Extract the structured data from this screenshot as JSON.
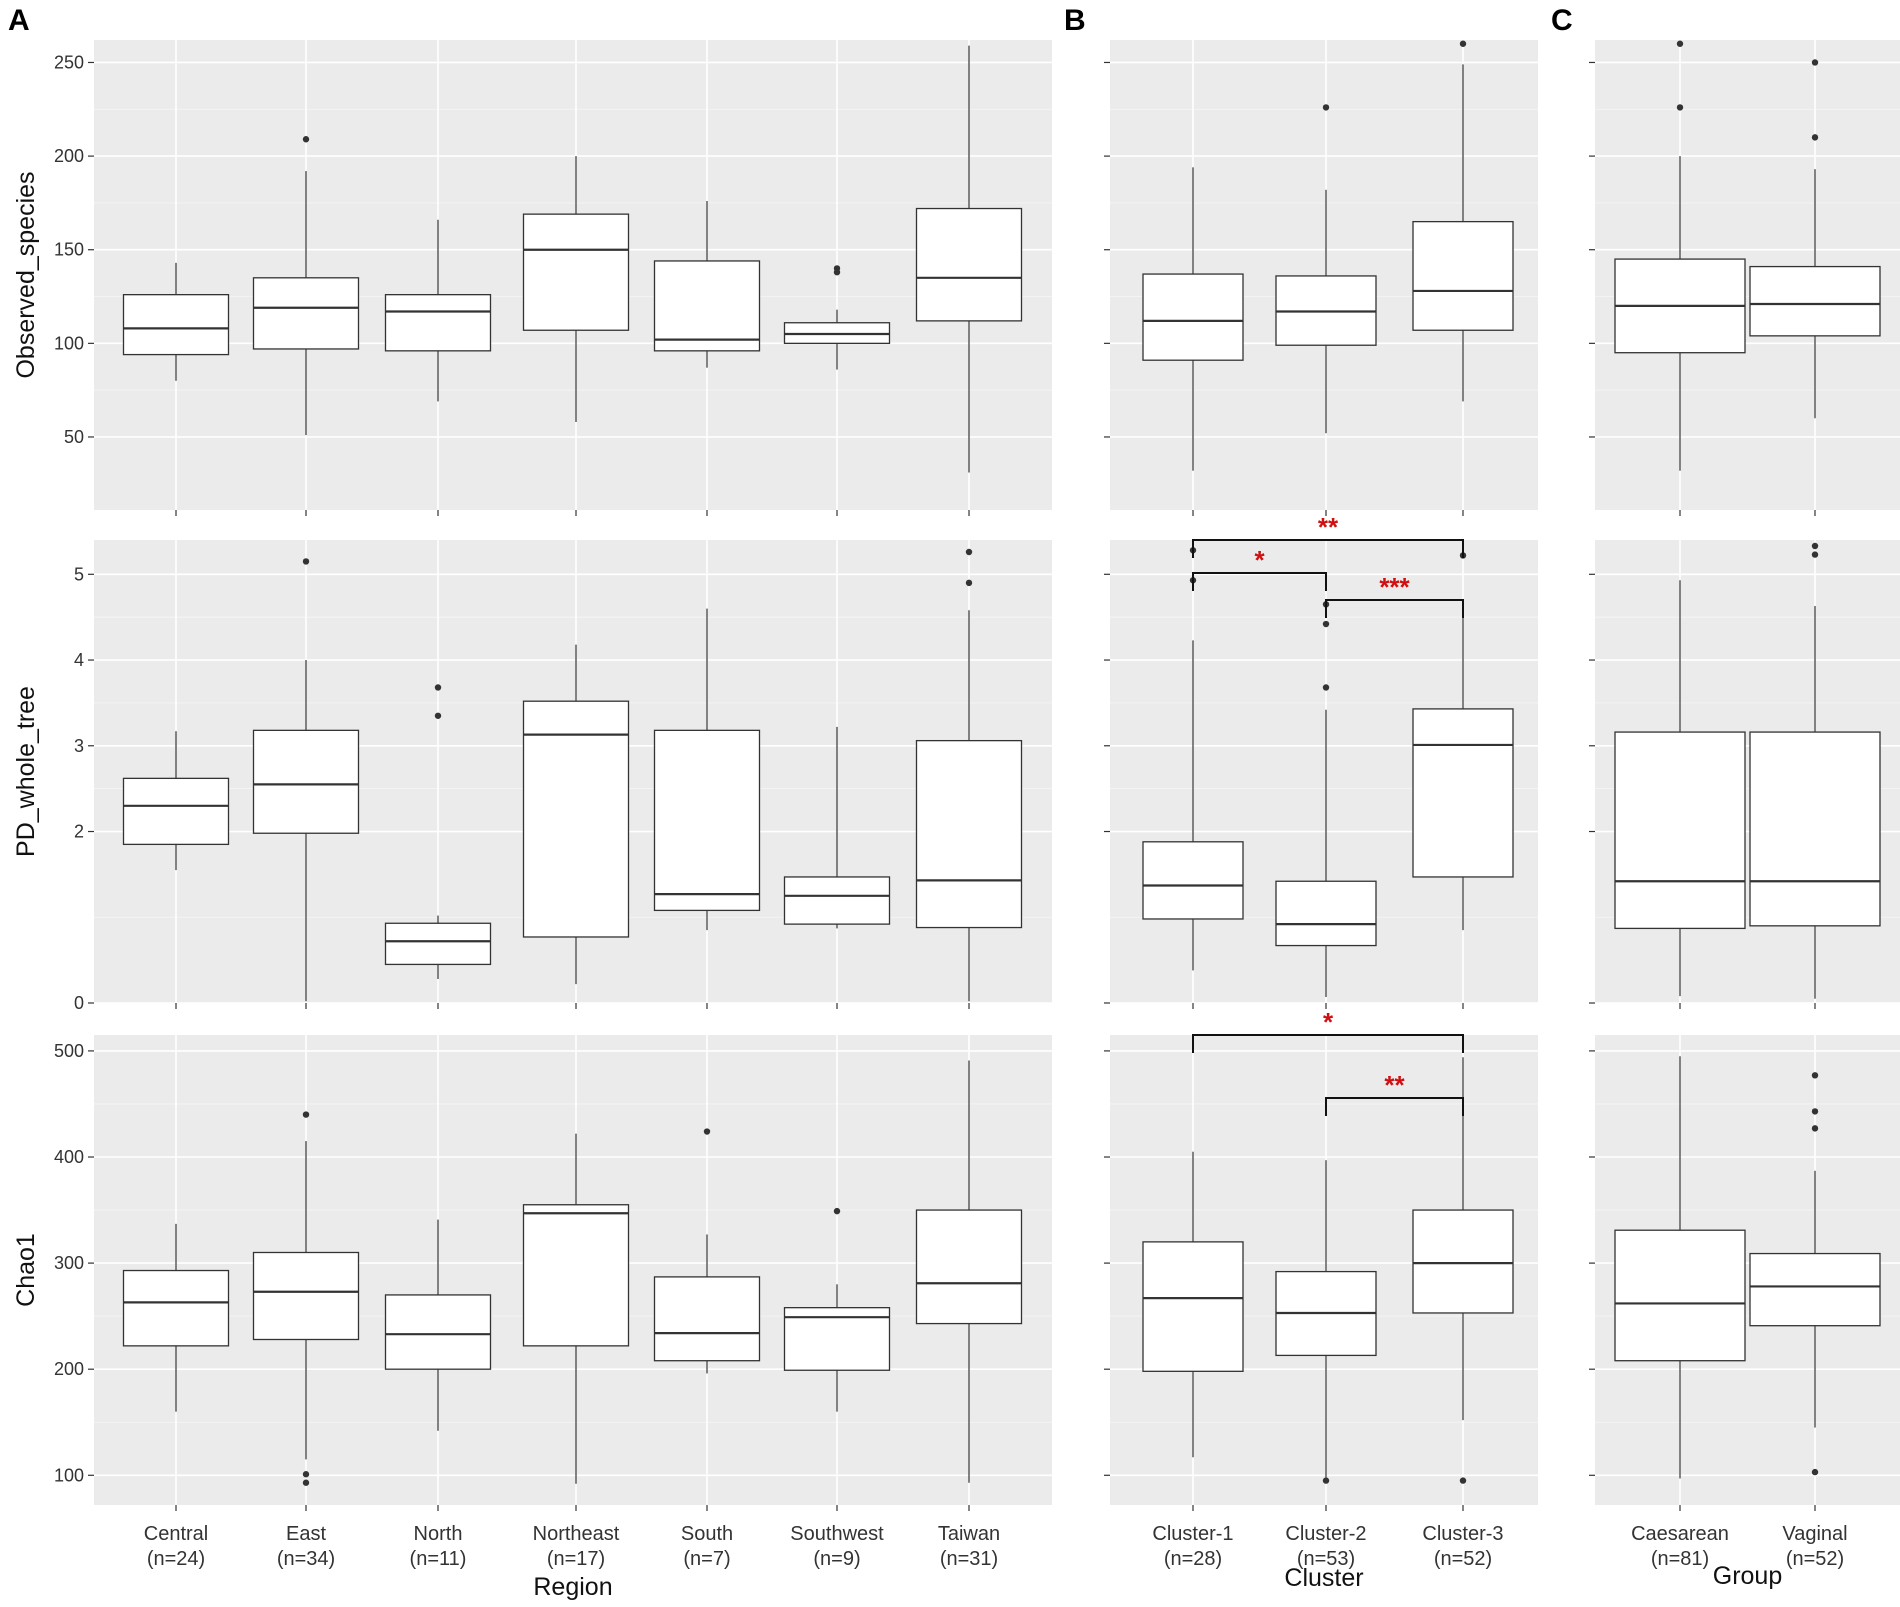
{
  "panel_letters": [
    "A",
    "B",
    "C"
  ],
  "colors": {
    "panel_bg": "#ebebeb",
    "grid": "#ffffff",
    "box_fill": "#ffffff",
    "line": "#333333",
    "significance": "#d01010"
  },
  "chart_data": [
    {
      "panel": "A",
      "type": "boxplot",
      "xlabel": "Region",
      "categories": [
        {
          "name": "Central",
          "n": "(n=24)"
        },
        {
          "name": "East",
          "n": "(n=34)"
        },
        {
          "name": "North",
          "n": "(n=11)"
        },
        {
          "name": "Northeast",
          "n": "(n=17)"
        },
        {
          "name": "South",
          "n": "(n=7)"
        },
        {
          "name": "Southwest",
          "n": "(n=9)"
        },
        {
          "name": "Taiwan",
          "n": "(n=31)"
        }
      ],
      "rows": [
        {
          "metric": "Observed_species",
          "ylabel": "Observed_species",
          "ylim": [
            11,
            262
          ],
          "yticks": [
            50,
            100,
            150,
            200,
            250
          ],
          "boxes": [
            {
              "whisker_low": 80,
              "q1": 94,
              "median": 108,
              "q3": 126,
              "whisker_high": 143,
              "outliers": []
            },
            {
              "whisker_low": 51,
              "q1": 97,
              "median": 119,
              "q3": 135,
              "whisker_high": 192,
              "outliers": [
                209
              ]
            },
            {
              "whisker_low": 69,
              "q1": 96,
              "median": 117,
              "q3": 126,
              "whisker_high": 166,
              "outliers": []
            },
            {
              "whisker_low": 58,
              "q1": 107,
              "median": 150,
              "q3": 169,
              "whisker_high": 200,
              "outliers": []
            },
            {
              "whisker_low": 87,
              "q1": 96,
              "median": 102,
              "q3": 144,
              "whisker_high": 176,
              "outliers": []
            },
            {
              "whisker_low": 86,
              "q1": 100,
              "median": 105,
              "q3": 111,
              "whisker_high": 118,
              "outliers": [
                138,
                140
              ]
            },
            {
              "whisker_low": 31,
              "q1": 112,
              "median": 135,
              "q3": 172,
              "whisker_high": 259,
              "outliers": []
            }
          ]
        },
        {
          "metric": "PD_whole_tree",
          "ylabel": "PD_whole_tree",
          "ylim": [
            0,
            5.4
          ],
          "yticks": [
            0,
            2,
            3,
            4,
            5
          ],
          "boxes": [
            {
              "whisker_low": 1.55,
              "q1": 1.85,
              "median": 2.3,
              "q3": 2.62,
              "whisker_high": 3.17,
              "outliers": []
            },
            {
              "whisker_low": 0.02,
              "q1": 1.98,
              "median": 2.55,
              "q3": 3.18,
              "whisker_high": 4.0,
              "outliers": [
                5.15
              ]
            },
            {
              "whisker_low": 0.28,
              "q1": 0.45,
              "median": 0.72,
              "q3": 0.93,
              "whisker_high": 1.02,
              "outliers": [
                3.35,
                3.68
              ]
            },
            {
              "whisker_low": 0.22,
              "q1": 0.77,
              "median": 3.13,
              "q3": 3.52,
              "whisker_high": 4.18,
              "outliers": []
            },
            {
              "whisker_low": 0.85,
              "q1": 1.08,
              "median": 1.27,
              "q3": 3.18,
              "whisker_high": 4.6,
              "outliers": []
            },
            {
              "whisker_low": 0.87,
              "q1": 0.92,
              "median": 1.25,
              "q3": 1.47,
              "whisker_high": 3.22,
              "outliers": []
            },
            {
              "whisker_low": 0.02,
              "q1": 0.88,
              "median": 1.43,
              "q3": 3.06,
              "whisker_high": 4.58,
              "outliers": [
                4.9,
                5.26
              ]
            }
          ]
        },
        {
          "metric": "Chao1",
          "ylabel": "Chao1",
          "ylim": [
            72,
            515
          ],
          "yticks": [
            100,
            200,
            300,
            400,
            500
          ],
          "boxes": [
            {
              "whisker_low": 160,
              "q1": 222,
              "median": 263,
              "q3": 293,
              "whisker_high": 337,
              "outliers": []
            },
            {
              "whisker_low": 115,
              "q1": 228,
              "median": 273,
              "q3": 310,
              "whisker_high": 415,
              "outliers": [
                93,
                101,
                440
              ]
            },
            {
              "whisker_low": 142,
              "q1": 200,
              "median": 233,
              "q3": 270,
              "whisker_high": 341,
              "outliers": []
            },
            {
              "whisker_low": 92,
              "q1": 222,
              "median": 347,
              "q3": 355,
              "whisker_high": 422,
              "outliers": []
            },
            {
              "whisker_low": 196,
              "q1": 208,
              "median": 234,
              "q3": 287,
              "whisker_high": 327,
              "outliers": [
                424
              ]
            },
            {
              "whisker_low": 160,
              "q1": 199,
              "median": 249,
              "q3": 258,
              "whisker_high": 280,
              "outliers": [
                349
              ]
            },
            {
              "whisker_low": 93,
              "q1": 243,
              "median": 281,
              "q3": 350,
              "whisker_high": 491,
              "outliers": []
            }
          ]
        }
      ]
    },
    {
      "panel": "B",
      "type": "boxplot",
      "xlabel": "Cluster",
      "categories": [
        {
          "name": "Cluster-1",
          "n": "(n=28)"
        },
        {
          "name": "Cluster-2",
          "n": "(n=53)"
        },
        {
          "name": "Cluster-3",
          "n": "(n=52)"
        }
      ],
      "rows": [
        {
          "metric": "Observed_species",
          "ylim": [
            11,
            262
          ],
          "yticks": [
            50,
            100,
            150,
            200,
            250
          ],
          "boxes": [
            {
              "whisker_low": 32,
              "q1": 91,
              "median": 112,
              "q3": 137,
              "whisker_high": 194,
              "outliers": []
            },
            {
              "whisker_low": 52,
              "q1": 99,
              "median": 117,
              "q3": 136,
              "whisker_high": 182,
              "outliers": [
                226
              ]
            },
            {
              "whisker_low": 69,
              "q1": 107,
              "median": 128,
              "q3": 165,
              "whisker_high": 249,
              "outliers": [
                260
              ]
            }
          ],
          "brackets": []
        },
        {
          "metric": "PD_whole_tree",
          "ylim": [
            0,
            5.4
          ],
          "yticks": [
            0,
            2,
            3,
            4,
            5
          ],
          "boxes": [
            {
              "whisker_low": 0.38,
              "q1": 0.98,
              "median": 1.37,
              "q3": 1.88,
              "whisker_high": 4.23,
              "outliers": [
                4.93,
                5.28
              ]
            },
            {
              "whisker_low": 0.07,
              "q1": 0.67,
              "median": 0.92,
              "q3": 1.42,
              "whisker_high": 3.42,
              "outliers": [
                3.68,
                4.42,
                4.65
              ]
            },
            {
              "whisker_low": 0.85,
              "q1": 1.47,
              "median": 3.01,
              "q3": 3.43,
              "whisker_high": 4.68,
              "outliers": [
                5.22
              ]
            }
          ],
          "brackets": [
            {
              "from": 0,
              "to": 2,
              "label": "**",
              "level": 1
            },
            {
              "from": 0,
              "to": 1,
              "label": "*",
              "level": 2
            },
            {
              "from": 1,
              "to": 2,
              "label": "***",
              "level": 3
            }
          ]
        },
        {
          "metric": "Chao1",
          "ylim": [
            72,
            515
          ],
          "yticks": [
            100,
            200,
            300,
            400,
            500
          ],
          "boxes": [
            {
              "whisker_low": 117,
              "q1": 198,
              "median": 267,
              "q3": 320,
              "whisker_high": 405,
              "outliers": []
            },
            {
              "whisker_low": 98,
              "q1": 213,
              "median": 253,
              "q3": 292,
              "whisker_high": 397,
              "outliers": [
                95
              ]
            },
            {
              "whisker_low": 152,
              "q1": 253,
              "median": 300,
              "q3": 350,
              "whisker_high": 494,
              "outliers": [
                95
              ]
            }
          ],
          "brackets": [
            {
              "from": 0,
              "to": 2,
              "label": "*",
              "level": 1
            },
            {
              "from": 1,
              "to": 2,
              "label": "**",
              "level": 2
            }
          ]
        }
      ]
    },
    {
      "panel": "C",
      "type": "boxplot",
      "xlabel": "Group",
      "categories": [
        {
          "name": "Caesarean",
          "n": "(n=81)"
        },
        {
          "name": "Vaginal",
          "n": "(n=52)"
        }
      ],
      "rows": [
        {
          "metric": "Observed_species",
          "ylim": [
            11,
            262
          ],
          "yticks": [
            50,
            100,
            150,
            200,
            250
          ],
          "boxes": [
            {
              "whisker_low": 32,
              "q1": 95,
              "median": 120,
              "q3": 145,
              "whisker_high": 200,
              "outliers": [
                226,
                260
              ]
            },
            {
              "whisker_low": 60,
              "q1": 104,
              "median": 121,
              "q3": 141,
              "whisker_high": 193,
              "outliers": [
                210,
                250
              ]
            }
          ]
        },
        {
          "metric": "PD_whole_tree",
          "ylim": [
            0,
            5.4
          ],
          "yticks": [
            0,
            2,
            3,
            4,
            5
          ],
          "boxes": [
            {
              "whisker_low": 0.08,
              "q1": 0.87,
              "median": 1.42,
              "q3": 3.16,
              "whisker_high": 4.93,
              "outliers": []
            },
            {
              "whisker_low": 0.05,
              "q1": 0.9,
              "median": 1.42,
              "q3": 3.16,
              "whisker_high": 4.63,
              "outliers": [
                5.23,
                5.33
              ]
            }
          ]
        },
        {
          "metric": "Chao1",
          "ylim": [
            72,
            515
          ],
          "yticks": [
            100,
            200,
            300,
            400,
            500
          ],
          "boxes": [
            {
              "whisker_low": 97,
              "q1": 208,
              "median": 262,
              "q3": 331,
              "whisker_high": 495,
              "outliers": []
            },
            {
              "whisker_low": 145,
              "q1": 241,
              "median": 278,
              "q3": 309,
              "whisker_high": 387,
              "outliers": [
                103,
                427,
                443,
                477
              ]
            }
          ]
        }
      ]
    }
  ]
}
